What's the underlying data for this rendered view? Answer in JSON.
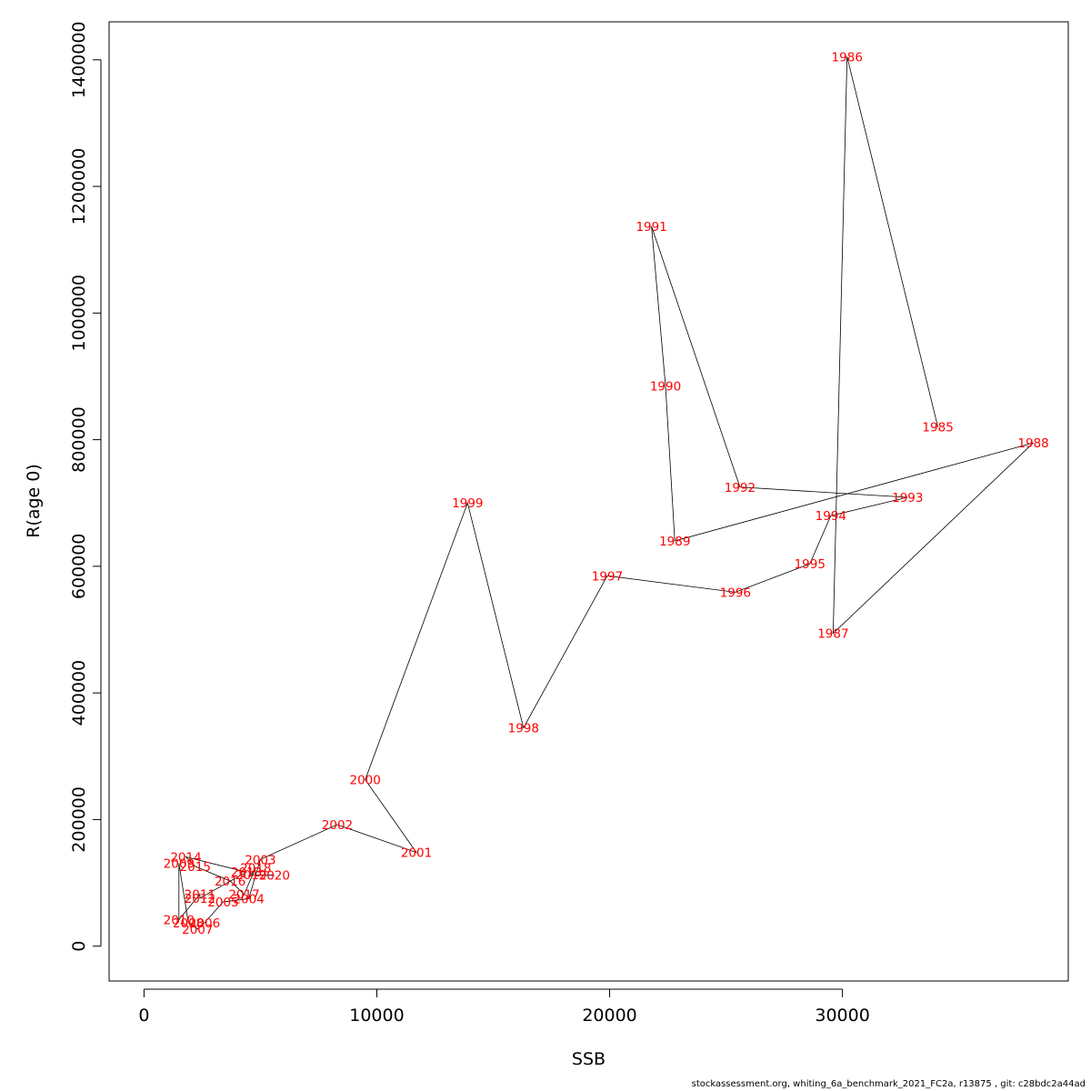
{
  "chart_data": {
    "type": "line",
    "xlabel": "SSB",
    "ylabel": "R(age 0)",
    "xlim": [
      -1500,
      39700
    ],
    "ylim": [
      -55000,
      1460000
    ],
    "x_ticks": [
      0,
      10000,
      20000,
      30000
    ],
    "y_ticks": [
      0,
      200000,
      400000,
      600000,
      800000,
      1000000,
      1200000,
      1400000
    ],
    "x_tick_labels": [
      "0",
      "10000",
      "20000",
      "30000"
    ],
    "y_tick_labels": [
      "0",
      "200000",
      "400000",
      "600000",
      "800000",
      "1000000",
      "1200000",
      "1400000"
    ],
    "grid": false,
    "line_color": "#000000",
    "label_color": "#ff0000",
    "points": [
      {
        "year": "1985",
        "x": 34100,
        "y": 820000
      },
      {
        "year": "1986",
        "x": 30200,
        "y": 1405000
      },
      {
        "year": "1987",
        "x": 29600,
        "y": 494000
      },
      {
        "year": "1988",
        "x": 38200,
        "y": 795000
      },
      {
        "year": "1989",
        "x": 22800,
        "y": 640000
      },
      {
        "year": "1990",
        "x": 22400,
        "y": 885000
      },
      {
        "year": "1991",
        "x": 21800,
        "y": 1137000
      },
      {
        "year": "1992",
        "x": 25600,
        "y": 725000
      },
      {
        "year": "1993",
        "x": 32800,
        "y": 709000
      },
      {
        "year": "1994",
        "x": 29500,
        "y": 680000
      },
      {
        "year": "1995",
        "x": 28600,
        "y": 604000
      },
      {
        "year": "1996",
        "x": 25400,
        "y": 559000
      },
      {
        "year": "1997",
        "x": 19900,
        "y": 585000
      },
      {
        "year": "1998",
        "x": 16300,
        "y": 345000
      },
      {
        "year": "1999",
        "x": 13900,
        "y": 700000
      },
      {
        "year": "2000",
        "x": 9500,
        "y": 263000
      },
      {
        "year": "2001",
        "x": 11700,
        "y": 148000
      },
      {
        "year": "2002",
        "x": 8300,
        "y": 192000
      },
      {
        "year": "2003",
        "x": 5000,
        "y": 137000
      },
      {
        "year": "2004",
        "x": 4500,
        "y": 75000
      },
      {
        "year": "2005",
        "x": 3400,
        "y": 70000
      },
      {
        "year": "2006",
        "x": 2600,
        "y": 37000
      },
      {
        "year": "2007",
        "x": 2300,
        "y": 27000
      },
      {
        "year": "2008",
        "x": 1900,
        "y": 37000
      },
      {
        "year": "2009",
        "x": 1500,
        "y": 131000
      },
      {
        "year": "2010",
        "x": 1500,
        "y": 42000
      },
      {
        "year": "2011",
        "x": 2400,
        "y": 82000
      },
      {
        "year": "2012",
        "x": 2400,
        "y": 76000
      },
      {
        "year": "2013",
        "x": 4400,
        "y": 117000
      },
      {
        "year": "2014",
        "x": 1800,
        "y": 141000
      },
      {
        "year": "2015",
        "x": 2200,
        "y": 126000
      },
      {
        "year": "2016",
        "x": 3700,
        "y": 103000
      },
      {
        "year": "2017",
        "x": 4300,
        "y": 82000
      },
      {
        "year": "2018",
        "x": 4800,
        "y": 124000
      },
      {
        "year": "2019",
        "x": 4600,
        "y": 113000
      },
      {
        "year": "2020",
        "x": 5600,
        "y": 112000
      }
    ]
  },
  "footer": "stockassessment.org, whiting_6a_benchmark_2021_FC2a, r13875 , git: c28bdc2a44ad"
}
